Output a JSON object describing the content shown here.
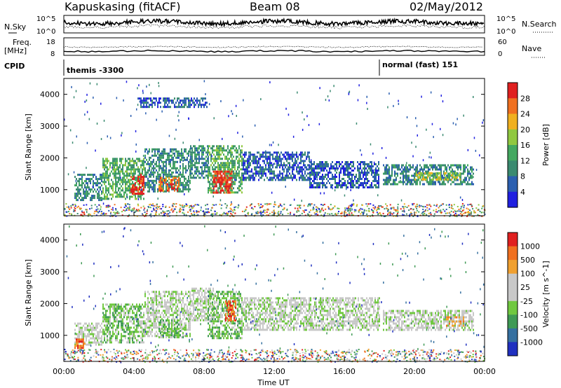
{
  "header": {
    "station": "Kapuskasing (fitACF)",
    "beam": "Beam 08",
    "date": "02/May/2012"
  },
  "top_strip": {
    "nsky_label": "N.Sky",
    "nsky_ticks": [
      "10^5",
      "10^0"
    ],
    "nsearch_label": "N.Search",
    "nsearch_ticks": [
      "10^5",
      "10^0"
    ],
    "freq_label": "Freq.",
    "freq_unit": "[MHz]",
    "freq_ticks": [
      "18",
      "8"
    ],
    "nave_label": "Nave",
    "nave_ticks": [
      "60",
      "0"
    ],
    "cpid_label": "CPID",
    "cpid_segments": [
      {
        "name": "themis -3300",
        "start_hour": 0,
        "end_hour": 18
      },
      {
        "name": "normal (fast) 151",
        "start_hour": 18,
        "end_hour": 24
      }
    ]
  },
  "chart_data": [
    {
      "type": "heatmap",
      "name": "power",
      "xlabel": "",
      "ylabel": "Slant Range [km]",
      "xlim": [
        0,
        24
      ],
      "ylim": [
        180,
        4500
      ],
      "yticks": [
        "1000",
        "2000",
        "3000",
        "4000"
      ],
      "colorbar": {
        "label": "Power [dB]",
        "ticks": [
          "4",
          "8",
          "12",
          "16",
          "20",
          "24",
          "28"
        ],
        "colors": [
          "#2020e0",
          "#2b5fb0",
          "#3a8a70",
          "#43a860",
          "#90c840",
          "#f0b020",
          "#f07020",
          "#e02020"
        ]
      },
      "regions": [
        {
          "t0": 0.6,
          "t1": 2.2,
          "r0": 650,
          "r1": 1500,
          "level": 2
        },
        {
          "t0": 2.2,
          "t1": 4.6,
          "r0": 700,
          "r1": 2000,
          "level": 3
        },
        {
          "t0": 3.8,
          "t1": 4.6,
          "r0": 900,
          "r1": 1500,
          "level": 7
        },
        {
          "t0": 4.6,
          "t1": 7.2,
          "r0": 950,
          "r1": 2300,
          "level": 2
        },
        {
          "t0": 5.4,
          "t1": 6.6,
          "r0": 950,
          "r1": 1400,
          "level": 6
        },
        {
          "t0": 7.2,
          "t1": 8.2,
          "r0": 1400,
          "r1": 2400,
          "level": 2
        },
        {
          "t0": 8.2,
          "t1": 10.2,
          "r0": 900,
          "r1": 2400,
          "level": 3
        },
        {
          "t0": 8.5,
          "t1": 9.6,
          "r0": 900,
          "r1": 1600,
          "level": 7
        },
        {
          "t0": 10.2,
          "t1": 14.0,
          "r0": 1300,
          "r1": 2200,
          "level": 1
        },
        {
          "t0": 14.0,
          "t1": 18.0,
          "r0": 1100,
          "r1": 1900,
          "level": 1
        },
        {
          "t0": 18.2,
          "t1": 23.4,
          "r0": 1200,
          "r1": 1800,
          "level": 2
        },
        {
          "t0": 20.0,
          "t1": 22.6,
          "r0": 1300,
          "r1": 1550,
          "level": 4
        },
        {
          "t0": 4.2,
          "t1": 8.2,
          "r0": 3600,
          "r1": 3900,
          "level": 1
        }
      ]
    },
    {
      "type": "heatmap",
      "name": "velocity",
      "xlabel": "Time UT",
      "ylabel": "Slant Range [km]",
      "xlim": [
        0,
        24
      ],
      "ylim": [
        180,
        4500
      ],
      "yticks": [
        "1000",
        "2000",
        "3000",
        "4000"
      ],
      "xticks": [
        "00:00",
        "04:00",
        "08:00",
        "12:00",
        "16:00",
        "20:00",
        "00:00"
      ],
      "colorbar": {
        "label": "Velocity [m s^-1]",
        "ticks": [
          "1000",
          "500",
          "100",
          "25",
          "-25",
          "-100",
          "-500",
          "-1000"
        ],
        "colors": [
          "#2030c0",
          "#3570a0",
          "#3f9a55",
          "#70c840",
          "#c8c8c8",
          "#c8c8c8",
          "#f0a030",
          "#f07020",
          "#e02020"
        ]
      },
      "regions": [
        {
          "t0": 0.6,
          "t1": 2.2,
          "r0": 700,
          "r1": 1400,
          "level": 4
        },
        {
          "t0": 2.2,
          "t1": 4.6,
          "r0": 800,
          "r1": 2000,
          "level": 3
        },
        {
          "t0": 4.6,
          "t1": 7.2,
          "r0": 950,
          "r1": 2400,
          "level": 4
        },
        {
          "t0": 5.4,
          "t1": 6.8,
          "r0": 950,
          "r1": 1500,
          "level": 3
        },
        {
          "t0": 7.2,
          "t1": 8.6,
          "r0": 1500,
          "r1": 2500,
          "level": 4
        },
        {
          "t0": 8.2,
          "t1": 10.2,
          "r0": 900,
          "r1": 2400,
          "level": 3
        },
        {
          "t0": 10.2,
          "t1": 18.0,
          "r0": 1200,
          "r1": 2200,
          "level": 4
        },
        {
          "t0": 18.2,
          "t1": 23.4,
          "r0": 1200,
          "r1": 1800,
          "level": 4
        },
        {
          "t0": 21.8,
          "t1": 22.8,
          "r0": 1300,
          "r1": 1600,
          "level": 6
        },
        {
          "t0": 9.2,
          "t1": 9.8,
          "r0": 1500,
          "r1": 2100,
          "level": 7
        },
        {
          "t0": 0.6,
          "t1": 1.2,
          "r0": 600,
          "r1": 900,
          "level": 7
        }
      ]
    }
  ]
}
